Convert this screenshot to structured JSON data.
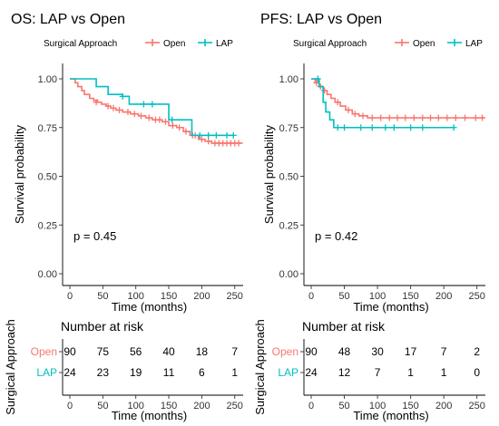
{
  "chart_data": [
    {
      "type": "line",
      "subtype": "kaplan-meier",
      "title": "OS: LAP vs Open",
      "legend": {
        "title": "Surgical Approach",
        "placement": "top"
      },
      "xlabel": "Time (months)",
      "ylabel": "Survival probability",
      "xlim": [
        0,
        260
      ],
      "ylim": [
        0,
        1
      ],
      "xticks": [
        0,
        50,
        100,
        150,
        200,
        250
      ],
      "yticks": [
        0.0,
        0.25,
        0.5,
        0.75,
        1.0
      ],
      "ytick_labels": [
        "0.00",
        "0.25",
        "0.50",
        "0.75",
        "1.00"
      ],
      "grid": false,
      "annotation": "p = 0.45",
      "series": [
        {
          "name": "Open",
          "color": "#F8766D",
          "steps": [
            [
              0,
              1.0
            ],
            [
              8,
              0.98
            ],
            [
              12,
              0.96
            ],
            [
              18,
              0.94
            ],
            [
              22,
              0.92
            ],
            [
              30,
              0.9
            ],
            [
              36,
              0.89
            ],
            [
              42,
              0.88
            ],
            [
              48,
              0.87
            ],
            [
              55,
              0.86
            ],
            [
              62,
              0.85
            ],
            [
              70,
              0.84
            ],
            [
              80,
              0.83
            ],
            [
              92,
              0.82
            ],
            [
              104,
              0.81
            ],
            [
              115,
              0.8
            ],
            [
              125,
              0.79
            ],
            [
              140,
              0.78
            ],
            [
              150,
              0.76
            ],
            [
              162,
              0.75
            ],
            [
              172,
              0.73
            ],
            [
              182,
              0.71
            ],
            [
              195,
              0.69
            ],
            [
              205,
              0.68
            ],
            [
              215,
              0.67
            ],
            [
              262,
              0.67
            ]
          ],
          "censors": [
            [
              40,
              0.88
            ],
            [
              58,
              0.86
            ],
            [
              66,
              0.85
            ],
            [
              75,
              0.84
            ],
            [
              88,
              0.83
            ],
            [
              98,
              0.82
            ],
            [
              108,
              0.81
            ],
            [
              120,
              0.8
            ],
            [
              130,
              0.79
            ],
            [
              136,
              0.79
            ],
            [
              145,
              0.78
            ],
            [
              156,
              0.76
            ],
            [
              166,
              0.75
            ],
            [
              176,
              0.73
            ],
            [
              186,
              0.71
            ],
            [
              190,
              0.71
            ],
            [
              200,
              0.69
            ],
            [
              210,
              0.68
            ],
            [
              220,
              0.67
            ],
            [
              226,
              0.67
            ],
            [
              232,
              0.67
            ],
            [
              238,
              0.67
            ],
            [
              244,
              0.67
            ],
            [
              250,
              0.67
            ],
            [
              256,
              0.67
            ]
          ]
        },
        {
          "name": "LAP",
          "color": "#00BFC4",
          "steps": [
            [
              0,
              1.0
            ],
            [
              40,
              0.96
            ],
            [
              58,
              0.92
            ],
            [
              80,
              0.91
            ],
            [
              90,
              0.87
            ],
            [
              150,
              0.79
            ],
            [
              185,
              0.71
            ],
            [
              248,
              0.71
            ]
          ],
          "censors": [
            [
              80,
              0.91
            ],
            [
              112,
              0.87
            ],
            [
              125,
              0.87
            ],
            [
              155,
              0.79
            ],
            [
              197,
              0.71
            ],
            [
              210,
              0.71
            ],
            [
              222,
              0.71
            ],
            [
              238,
              0.71
            ],
            [
              248,
              0.71
            ]
          ]
        }
      ],
      "risk_table": {
        "title": "Number at risk",
        "ylabel": "Surgical Approach",
        "xlabel": "Time (months)",
        "times": [
          0,
          50,
          100,
          150,
          200,
          250
        ],
        "rows": [
          {
            "name": "Open",
            "counts": [
              "90",
              "75",
              "56",
              "40",
              "18",
              "7"
            ]
          },
          {
            "name": "LAP",
            "counts": [
              "24",
              "23",
              "19",
              "11",
              "6",
              "1"
            ]
          }
        ]
      }
    },
    {
      "type": "line",
      "subtype": "kaplan-meier",
      "title": "PFS: LAP vs Open",
      "legend": {
        "title": "Surgical Approach",
        "placement": "top"
      },
      "xlabel": "Time (months)",
      "ylabel": "Survival probability",
      "xlim": [
        0,
        260
      ],
      "ylim": [
        0,
        1
      ],
      "xticks": [
        0,
        50,
        100,
        150,
        200,
        250
      ],
      "yticks": [
        0.0,
        0.25,
        0.5,
        0.75,
        1.0
      ],
      "ytick_labels": [
        "0.00",
        "0.25",
        "0.50",
        "0.75",
        "1.00"
      ],
      "grid": false,
      "annotation": "p = 0.42",
      "series": [
        {
          "name": "Open",
          "color": "#F8766D",
          "steps": [
            [
              0,
              1.0
            ],
            [
              6,
              0.98
            ],
            [
              12,
              0.96
            ],
            [
              18,
              0.94
            ],
            [
              24,
              0.92
            ],
            [
              30,
              0.9
            ],
            [
              36,
              0.88
            ],
            [
              44,
              0.86
            ],
            [
              52,
              0.84
            ],
            [
              62,
              0.82
            ],
            [
              72,
              0.81
            ],
            [
              85,
              0.8
            ],
            [
              262,
              0.8
            ]
          ],
          "censors": [
            [
              8,
              0.98
            ],
            [
              14,
              0.96
            ],
            [
              20,
              0.94
            ],
            [
              40,
              0.88
            ],
            [
              56,
              0.84
            ],
            [
              66,
              0.82
            ],
            [
              78,
              0.81
            ],
            [
              92,
              0.8
            ],
            [
              105,
              0.8
            ],
            [
              118,
              0.8
            ],
            [
              130,
              0.8
            ],
            [
              142,
              0.8
            ],
            [
              155,
              0.8
            ],
            [
              168,
              0.8
            ],
            [
              180,
              0.8
            ],
            [
              192,
              0.8
            ],
            [
              205,
              0.8
            ],
            [
              218,
              0.8
            ],
            [
              232,
              0.8
            ],
            [
              248,
              0.8
            ],
            [
              258,
              0.8
            ]
          ]
        },
        {
          "name": "LAP",
          "color": "#00BFC4",
          "steps": [
            [
              0,
              1.0
            ],
            [
              12,
              0.96
            ],
            [
              18,
              0.88
            ],
            [
              22,
              0.83
            ],
            [
              28,
              0.79
            ],
            [
              34,
              0.75
            ],
            [
              215,
              0.75
            ]
          ],
          "censors": [
            [
              10,
              1.0
            ],
            [
              40,
              0.75
            ],
            [
              50,
              0.75
            ],
            [
              75,
              0.75
            ],
            [
              92,
              0.75
            ],
            [
              112,
              0.75
            ],
            [
              125,
              0.75
            ],
            [
              150,
              0.75
            ],
            [
              168,
              0.75
            ],
            [
              215,
              0.75
            ]
          ]
        }
      ],
      "risk_table": {
        "title": "Number at risk",
        "ylabel": "Surgical Approach",
        "xlabel": "Time (months)",
        "times": [
          0,
          50,
          100,
          150,
          200,
          250
        ],
        "rows": [
          {
            "name": "Open",
            "counts": [
              "90",
              "48",
              "30",
              "17",
              "7",
              "2"
            ]
          },
          {
            "name": "LAP",
            "counts": [
              "24",
              "12",
              "7",
              "1",
              "1",
              "0"
            ]
          }
        ]
      }
    }
  ]
}
